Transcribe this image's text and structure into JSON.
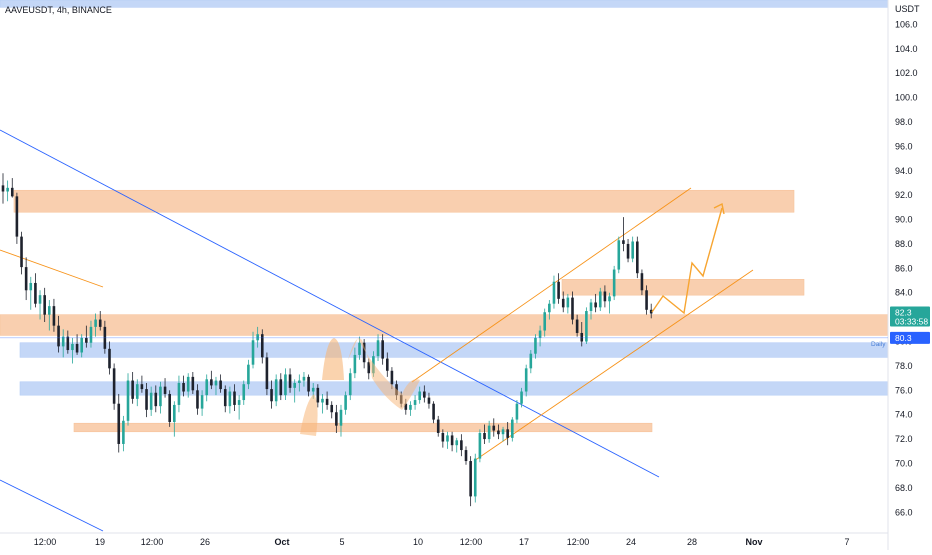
{
  "header": {
    "title": "AAVEUSDT, 4h, BINANCE"
  },
  "chart_data": {
    "type": "candlestick",
    "symbol": "AAVEUSDT",
    "interval": "4h",
    "exchange": "BINANCE",
    "y_unit": "USDT",
    "ylim": [
      64.3,
      108.0
    ],
    "y_ticks": [
      "66.0",
      "68.0",
      "70.0",
      "72.0",
      "74.0",
      "76.0",
      "78.0",
      "80.0",
      "82.0",
      "84.0",
      "86.0",
      "88.0",
      "90.0",
      "92.0",
      "94.0",
      "96.0",
      "98.0",
      "100.0",
      "102.0",
      "104.0",
      "106.0"
    ],
    "x_ticks": [
      "12:00",
      "19",
      "12:00",
      "26",
      "Oct",
      "5",
      "10",
      "12:00",
      "17",
      "12:00",
      "24",
      "28",
      "Nov",
      "7"
    ],
    "last_price": {
      "value": "82.3",
      "countdown": "03:33:58",
      "color": "#26a69a"
    },
    "daily_level": {
      "value": "80.3",
      "label": "Daily",
      "color": "#2962ff"
    },
    "candles": [
      [
        92.8,
        93.8,
        91.3,
        92.3
      ],
      [
        92.3,
        93.2,
        91.5,
        92.6
      ],
      [
        92.6,
        93.4,
        91.8,
        91.9
      ],
      [
        91.9,
        92.2,
        88.0,
        88.6
      ],
      [
        88.6,
        89.0,
        85.5,
        86.1
      ],
      [
        86.1,
        86.9,
        83.4,
        84.2
      ],
      [
        84.2,
        85.3,
        82.6,
        84.8
      ],
      [
        84.8,
        85.6,
        82.8,
        83.1
      ],
      [
        83.1,
        84.2,
        81.8,
        83.8
      ],
      [
        83.8,
        84.4,
        81.6,
        82.2
      ],
      [
        82.2,
        83.4,
        80.9,
        82.9
      ],
      [
        82.9,
        83.5,
        80.8,
        81.3
      ],
      [
        81.3,
        82.1,
        79.1,
        79.6
      ],
      [
        79.6,
        81.0,
        78.7,
        80.4
      ],
      [
        80.4,
        80.9,
        79.0,
        79.3
      ],
      [
        79.3,
        80.3,
        78.2,
        79.8
      ],
      [
        79.8,
        80.6,
        78.9,
        79.1
      ],
      [
        79.1,
        80.6,
        78.7,
        80.3
      ],
      [
        80.3,
        81.3,
        79.5,
        79.9
      ],
      [
        79.9,
        81.7,
        79.5,
        81.2
      ],
      [
        81.2,
        82.3,
        80.4,
        81.8
      ],
      [
        81.8,
        82.5,
        80.9,
        81.2
      ],
      [
        81.2,
        81.7,
        79.0,
        79.4
      ],
      [
        79.4,
        80.0,
        77.3,
        77.8
      ],
      [
        77.8,
        78.2,
        74.4,
        74.9
      ],
      [
        74.9,
        75.7,
        70.9,
        71.6
      ],
      [
        71.6,
        73.9,
        71.0,
        73.5
      ],
      [
        73.5,
        77.4,
        73.1,
        76.8
      ],
      [
        76.8,
        77.5,
        74.9,
        75.3
      ],
      [
        75.3,
        76.9,
        74.7,
        76.5
      ],
      [
        76.5,
        77.2,
        75.8,
        76.1
      ],
      [
        76.1,
        76.6,
        73.8,
        74.4
      ],
      [
        74.4,
        76.3,
        73.9,
        75.8
      ],
      [
        75.8,
        76.4,
        74.2,
        74.7
      ],
      [
        74.7,
        76.7,
        74.1,
        76.3
      ],
      [
        76.3,
        77.0,
        75.4,
        75.7
      ],
      [
        75.7,
        76.0,
        73.0,
        73.4
      ],
      [
        73.4,
        75.1,
        72.2,
        74.8
      ],
      [
        74.8,
        77.2,
        74.2,
        76.6
      ],
      [
        76.6,
        77.2,
        75.5,
        75.9
      ],
      [
        75.9,
        77.4,
        75.4,
        77.1
      ],
      [
        77.1,
        77.5,
        75.7,
        76.0
      ],
      [
        76.0,
        76.5,
        74.0,
        74.5
      ],
      [
        74.5,
        76.0,
        73.9,
        75.6
      ],
      [
        75.6,
        77.3,
        75.1,
        76.9
      ],
      [
        76.9,
        77.6,
        76.1,
        76.4
      ],
      [
        76.4,
        77.1,
        75.6,
        76.8
      ],
      [
        76.8,
        77.3,
        75.8,
        76.1
      ],
      [
        76.1,
        76.4,
        74.2,
        74.7
      ],
      [
        74.7,
        76.3,
        74.1,
        75.9
      ],
      [
        75.9,
        76.5,
        74.3,
        74.8
      ],
      [
        74.8,
        75.6,
        73.6,
        75.2
      ],
      [
        75.2,
        76.8,
        74.8,
        76.5
      ],
      [
        76.5,
        78.5,
        76.1,
        78.1
      ],
      [
        78.1,
        80.8,
        77.8,
        80.1
      ],
      [
        80.1,
        81.2,
        79.5,
        80.6
      ],
      [
        80.6,
        81.0,
        78.2,
        78.7
      ],
      [
        78.7,
        79.1,
        75.6,
        76.1
      ],
      [
        76.1,
        76.8,
        74.5,
        75.1
      ],
      [
        75.1,
        77.3,
        74.7,
        76.9
      ],
      [
        76.9,
        77.4,
        75.2,
        75.6
      ],
      [
        75.6,
        77.8,
        75.2,
        77.3
      ],
      [
        77.3,
        77.8,
        75.8,
        76.2
      ],
      [
        76.2,
        76.9,
        75.0,
        76.6
      ],
      [
        76.6,
        77.3,
        75.9,
        76.8
      ],
      [
        76.8,
        77.5,
        76.3,
        77.1
      ],
      [
        77.1,
        77.3,
        75.5,
        75.9
      ],
      [
        75.9,
        76.6,
        75.3,
        76.2
      ],
      [
        76.2,
        76.5,
        74.6,
        75.0
      ],
      [
        75.0,
        75.7,
        74.1,
        75.3
      ],
      [
        75.3,
        75.9,
        74.4,
        74.8
      ],
      [
        74.8,
        75.1,
        73.7,
        74.2
      ],
      [
        74.2,
        74.8,
        72.5,
        73.1
      ],
      [
        73.1,
        74.8,
        72.2,
        74.4
      ],
      [
        74.4,
        75.9,
        74.0,
        75.6
      ],
      [
        75.6,
        77.8,
        75.2,
        77.4
      ],
      [
        77.4,
        79.5,
        77.0,
        78.9
      ],
      [
        78.9,
        80.4,
        78.5,
        79.9
      ],
      [
        79.9,
        80.2,
        77.8,
        78.3
      ],
      [
        78.3,
        78.6,
        76.9,
        77.4
      ],
      [
        77.4,
        79.2,
        77.1,
        78.8
      ],
      [
        78.8,
        80.6,
        78.4,
        80.1
      ],
      [
        80.1,
        80.6,
        78.1,
        78.6
      ],
      [
        78.6,
        79.1,
        77.1,
        77.6
      ],
      [
        77.6,
        77.9,
        76.1,
        76.5
      ],
      [
        76.5,
        76.8,
        75.2,
        75.6
      ],
      [
        75.6,
        75.9,
        74.6,
        74.9
      ],
      [
        74.9,
        75.3,
        74.0,
        74.4
      ],
      [
        74.4,
        75.1,
        73.9,
        74.8
      ],
      [
        74.8,
        75.6,
        74.4,
        75.2
      ],
      [
        75.2,
        76.3,
        74.9,
        75.9
      ],
      [
        75.9,
        76.4,
        75.0,
        75.4
      ],
      [
        75.4,
        75.8,
        74.5,
        74.9
      ],
      [
        74.9,
        75.1,
        73.3,
        73.6
      ],
      [
        73.6,
        73.9,
        72.2,
        72.5
      ],
      [
        72.5,
        72.8,
        71.3,
        71.8
      ],
      [
        71.8,
        72.6,
        71.2,
        72.3
      ],
      [
        72.3,
        72.6,
        71.0,
        71.5
      ],
      [
        71.5,
        72.1,
        70.9,
        71.9
      ],
      [
        71.9,
        72.4,
        70.6,
        71.1
      ],
      [
        71.1,
        71.4,
        69.9,
        70.2
      ],
      [
        70.2,
        70.6,
        66.5,
        67.3
      ],
      [
        67.3,
        70.8,
        66.8,
        70.4
      ],
      [
        70.4,
        72.8,
        70.1,
        72.5
      ],
      [
        72.5,
        73.2,
        71.6,
        72.0
      ],
      [
        72.0,
        73.5,
        71.7,
        73.1
      ],
      [
        73.1,
        73.7,
        72.2,
        72.7
      ],
      [
        72.7,
        73.2,
        72.0,
        72.4
      ],
      [
        72.4,
        73.0,
        71.8,
        72.8
      ],
      [
        72.8,
        73.4,
        71.5,
        72.1
      ],
      [
        72.1,
        73.8,
        71.8,
        73.6
      ],
      [
        73.6,
        75.2,
        73.3,
        74.9
      ],
      [
        74.9,
        76.2,
        74.6,
        75.9
      ],
      [
        75.9,
        78.1,
        75.5,
        77.8
      ],
      [
        77.8,
        79.3,
        77.4,
        79.0
      ],
      [
        79.0,
        80.6,
        78.6,
        80.3
      ],
      [
        80.3,
        81.3,
        79.6,
        80.9
      ],
      [
        80.9,
        82.7,
        80.4,
        82.4
      ],
      [
        82.4,
        83.4,
        81.8,
        83.1
      ],
      [
        83.1,
        85.4,
        82.7,
        84.9
      ],
      [
        84.9,
        85.6,
        83.1,
        83.5
      ],
      [
        83.5,
        84.1,
        82.4,
        82.8
      ],
      [
        82.8,
        83.9,
        82.3,
        83.6
      ],
      [
        83.6,
        84.1,
        81.4,
        81.8
      ],
      [
        81.8,
        82.2,
        80.4,
        80.7
      ],
      [
        80.7,
        81.6,
        79.6,
        80.0
      ],
      [
        80.0,
        82.8,
        79.8,
        82.5
      ],
      [
        82.5,
        83.5,
        81.8,
        83.2
      ],
      [
        83.2,
        83.9,
        82.4,
        82.8
      ],
      [
        82.8,
        84.4,
        82.5,
        84.1
      ],
      [
        84.1,
        84.6,
        82.8,
        83.3
      ],
      [
        83.3,
        84.0,
        82.3,
        83.7
      ],
      [
        83.7,
        86.2,
        83.4,
        85.9
      ],
      [
        85.9,
        88.6,
        85.6,
        88.3
      ],
      [
        88.3,
        90.2,
        87.4,
        88.0
      ],
      [
        88.0,
        88.4,
        86.5,
        86.8
      ],
      [
        86.8,
        88.6,
        86.5,
        88.2
      ],
      [
        88.2,
        88.6,
        85.2,
        85.6
      ],
      [
        85.6,
        85.9,
        83.8,
        84.2
      ],
      [
        84.2,
        84.6,
        82.2,
        82.6
      ],
      [
        82.6,
        83.1,
        81.9,
        82.3
      ]
    ],
    "zones": [
      {
        "type": "resistance",
        "top": 92.4,
        "bottom": 90.6,
        "color": "#f7c39b"
      },
      {
        "type": "resistance",
        "top": 85.1,
        "bottom": 83.8,
        "color": "#f7c39b"
      },
      {
        "type": "support",
        "top": 82.2,
        "bottom": 80.5,
        "color": "#f7c39b"
      },
      {
        "type": "support",
        "top": 79.9,
        "bottom": 78.7,
        "color": "#b5cdf5"
      },
      {
        "type": "support",
        "top": 76.7,
        "bottom": 75.6,
        "color": "#b5cdf5"
      },
      {
        "type": "support",
        "top": 73.3,
        "bottom": 72.6,
        "color": "#f7c39b"
      },
      {
        "type": "support",
        "top": 108.0,
        "bottom": 107.4,
        "color": "#b5cdf5"
      }
    ],
    "colors": {
      "up": "#26a69a",
      "down": "#1e222d",
      "trend_blue": "#2962ff",
      "channel_orange": "#f7931a"
    }
  }
}
